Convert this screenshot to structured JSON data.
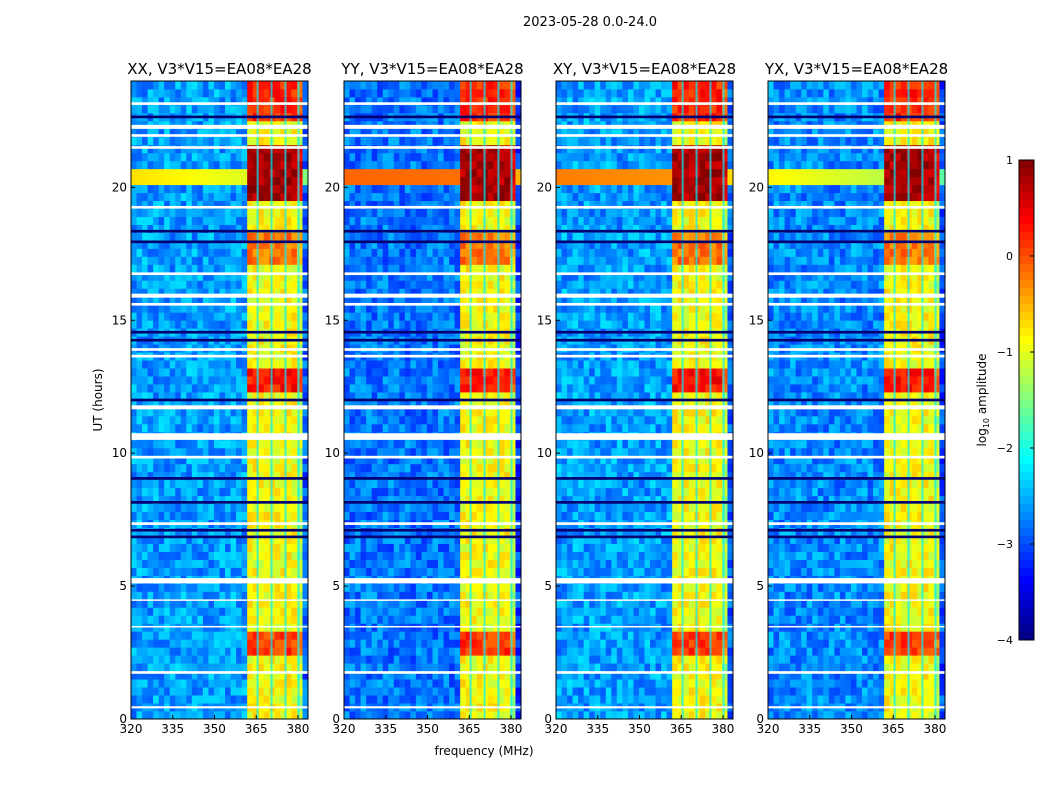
{
  "chart_data": {
    "type": "heatmap",
    "suptitle": "2023-05-28 0.0-24.0",
    "xlabel": "frequency (MHz)",
    "ylabel": "UT (hours)",
    "xlim": [
      320,
      383.6
    ],
    "ylim": [
      0,
      24
    ],
    "xticks": [
      320,
      335,
      350,
      365,
      380
    ],
    "yticks": [
      0,
      5,
      10,
      15,
      20
    ],
    "colorbar": {
      "label": "log10 amplitude",
      "label_main": "log",
      "label_sub": "10",
      "label_rest": " amplitude",
      "range": [
        -4,
        1
      ],
      "ticks": [
        1,
        0,
        -1,
        -2,
        -3,
        -4
      ],
      "tick_labels": [
        "1",
        "0",
        "−1",
        "−2",
        "−3",
        "−4"
      ],
      "colormap": "jet"
    },
    "panels": [
      {
        "title": "XX, V3*V15=EA08*EA28",
        "background": -2.6,
        "strong_band_20h": -1.2
      },
      {
        "title": "YY, V3*V15=EA08*EA28",
        "background": -2.8,
        "strong_band_20h": -0.2
      },
      {
        "title": "XY, V3*V15=EA08*EA28",
        "background": -2.6,
        "strong_band_20h": -0.4
      },
      {
        "title": "YX, V3*V15=EA08*EA28",
        "background": -2.7,
        "strong_band_20h": -1.4
      }
    ],
    "rfi_band_mhz": [
      362,
      381
    ],
    "rfi_band_level": -0.9,
    "rfi_column_gaps_mhz": [
      365.5,
      370.5,
      375.5,
      380.2
    ],
    "bright_rfi_hours": [
      [
        19.6,
        21.6,
        0.8
      ],
      [
        12.4,
        13.3,
        0.3
      ],
      [
        2.3,
        3.3,
        0.1
      ],
      [
        17.2,
        18.2,
        -0.2
      ],
      [
        22.6,
        23.9,
        0.2
      ]
    ],
    "flagged_hours": [
      [
        23.1,
        23.2
      ],
      [
        22.2,
        22.35
      ],
      [
        21.9,
        22.0
      ],
      [
        21.45,
        21.55
      ],
      [
        19.2,
        19.3
      ],
      [
        16.7,
        16.8
      ],
      [
        15.85,
        16.0
      ],
      [
        15.55,
        15.65
      ],
      [
        13.85,
        13.95
      ],
      [
        13.6,
        13.7
      ],
      [
        11.65,
        11.8
      ],
      [
        10.5,
        10.75
      ],
      [
        9.8,
        9.9
      ],
      [
        7.3,
        7.4
      ],
      [
        5.1,
        5.3
      ],
      [
        4.45,
        4.5
      ],
      [
        3.45,
        3.5
      ],
      [
        1.7,
        1.8
      ],
      [
        0.4,
        0.48
      ]
    ],
    "dark_rows_hours": [
      [
        22.6,
        22.7
      ],
      [
        18.3,
        18.4
      ],
      [
        17.9,
        18.0
      ],
      [
        14.5,
        14.6
      ],
      [
        14.2,
        14.3
      ],
      [
        11.95,
        12.05
      ],
      [
        9.0,
        9.1
      ],
      [
        8.1,
        8.2
      ],
      [
        7.05,
        7.15
      ],
      [
        6.8,
        6.9
      ]
    ]
  }
}
